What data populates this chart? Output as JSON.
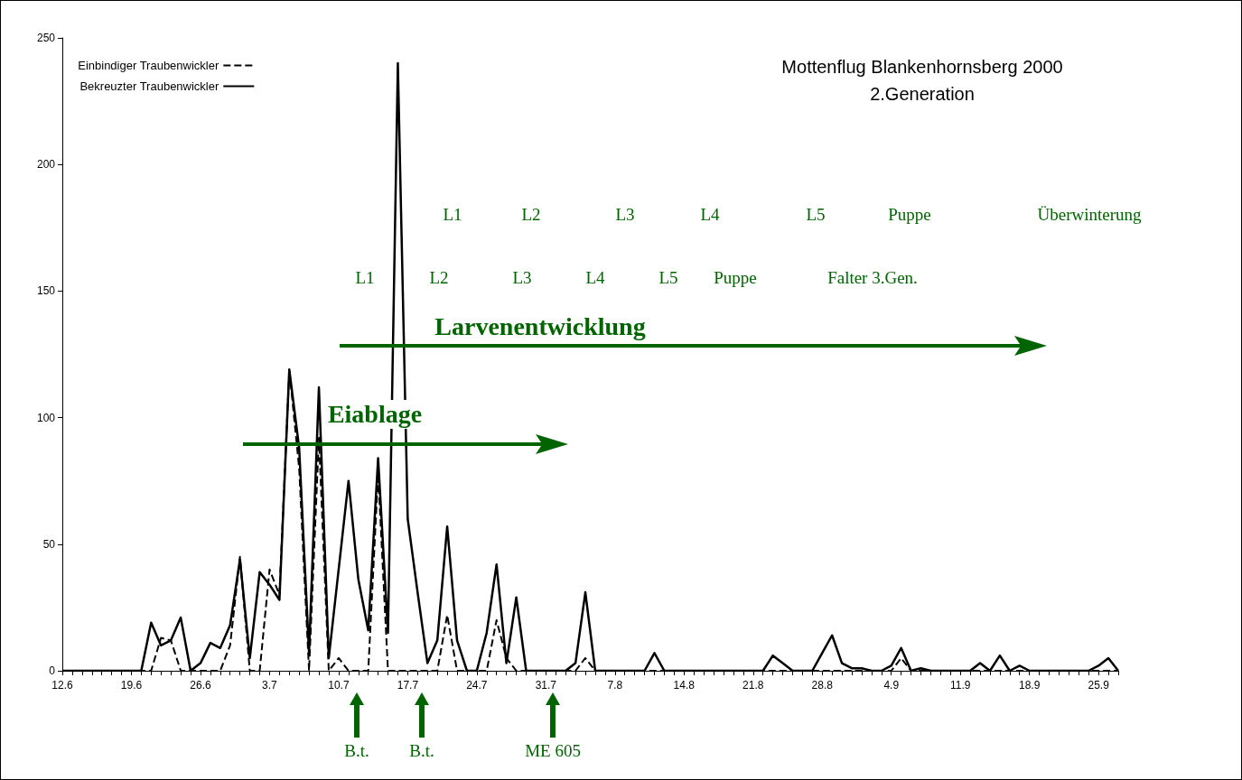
{
  "chart_data": {
    "type": "line",
    "title": "Mottenflug Blankenhornsberg 2000",
    "subtitle": "2.Generation",
    "categories": [
      "12.6",
      null,
      null,
      null,
      null,
      null,
      null,
      "19.6",
      null,
      null,
      null,
      null,
      null,
      null,
      "26.6",
      null,
      null,
      null,
      null,
      null,
      null,
      "3.7",
      null,
      null,
      null,
      null,
      null,
      null,
      "10.7",
      null,
      null,
      null,
      null,
      null,
      null,
      "17.7",
      null,
      null,
      null,
      null,
      null,
      null,
      "24.7",
      null,
      null,
      null,
      null,
      null,
      null,
      "31.7",
      null,
      null,
      null,
      null,
      null,
      null,
      "7.8",
      null,
      null,
      null,
      null,
      null,
      null,
      "14.8",
      null,
      null,
      null,
      null,
      null,
      null,
      "21.8",
      null,
      null,
      null,
      null,
      null,
      null,
      "28.8",
      null,
      null,
      null,
      null,
      null,
      null,
      "4.9",
      null,
      null,
      null,
      null,
      null,
      null,
      "11.9",
      null,
      null,
      null,
      null,
      null,
      null,
      "18.9",
      null,
      null,
      null,
      null,
      null,
      null,
      "25.9",
      null,
      null
    ],
    "series": [
      {
        "name": "Einbindiger Traubenwickler",
        "color": "#000000",
        "line_style": "dashed",
        "values": [
          0,
          0,
          0,
          0,
          0,
          0,
          0,
          0,
          0,
          0,
          13,
          12,
          0,
          0,
          0,
          0,
          0,
          10,
          45,
          0,
          0,
          40,
          30,
          119,
          80,
          0,
          92,
          0,
          5,
          0,
          0,
          0,
          78,
          0,
          0,
          0,
          0,
          0,
          0,
          22,
          0,
          0,
          0,
          0,
          20,
          5,
          0,
          0,
          0,
          0,
          0,
          0,
          0,
          5,
          0,
          0,
          0,
          0,
          0,
          0,
          0,
          0,
          0,
          0,
          0,
          0,
          0,
          0,
          0,
          0,
          0,
          0,
          0,
          0,
          0,
          0,
          0,
          0,
          0,
          0,
          0,
          0,
          0,
          0,
          0,
          5,
          0,
          0,
          0,
          0,
          0,
          0,
          0,
          0,
          0,
          0,
          0,
          0,
          0,
          0,
          0,
          0,
          0,
          0,
          0,
          0,
          0,
          0
        ]
      },
      {
        "name": "Bekreuzter Traubenwickler",
        "color": "#000000",
        "line_style": "solid",
        "values": [
          0,
          0,
          0,
          0,
          0,
          0,
          0,
          0,
          0,
          19,
          10,
          12,
          21,
          0,
          3,
          11,
          9,
          18,
          44,
          5,
          39,
          34,
          28,
          119,
          88,
          7,
          112,
          5,
          40,
          75,
          36,
          16,
          84,
          15,
          240,
          60,
          31,
          3,
          12,
          57,
          12,
          0,
          0,
          15,
          42,
          3,
          29,
          0,
          0,
          0,
          0,
          0,
          3,
          31,
          0,
          0,
          0,
          0,
          0,
          0,
          7,
          0,
          0,
          0,
          0,
          0,
          0,
          0,
          0,
          0,
          0,
          0,
          6,
          3,
          0,
          0,
          0,
          7,
          14,
          3,
          1,
          1,
          0,
          0,
          2,
          9,
          0,
          1,
          0,
          0,
          0,
          0,
          0,
          3,
          0,
          6,
          0,
          2,
          0,
          0,
          0,
          0,
          0,
          0,
          0,
          2,
          5,
          0
        ]
      }
    ],
    "ylim": [
      0,
      250
    ],
    "yticks": [
      0,
      50,
      100,
      150,
      200,
      250
    ],
    "grid": false,
    "legend": "top left",
    "marker": "none",
    "annotations": [
      "L1",
      "L2",
      "L3",
      "L4",
      "L5",
      "Puppe",
      "Überwinterung",
      "L1",
      "L2",
      "L3",
      "L4",
      "L5",
      "Puppe",
      "Falter 3.Gen.",
      "Larvenentwicklung",
      "Eiablage",
      "B.t.",
      "B.t.",
      "ME 605"
    ]
  }
}
